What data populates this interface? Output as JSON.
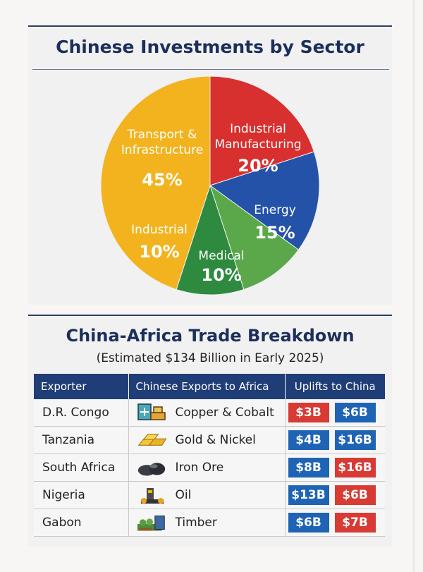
{
  "colors": {
    "title": "#1c2f5c",
    "header_bg": "#1f3d76",
    "red": "#d83a34",
    "blue": "#1f63b5",
    "pie_yellow": "#f2b31f",
    "pie_red": "#d8302e",
    "pie_blue": "#2452a8",
    "pie_light_green": "#5aa84a",
    "pie_green": "#2e8a3f"
  },
  "chart_data": {
    "type": "pie",
    "title": "Chinese Investments by Sector",
    "slices": [
      {
        "label_lines": [
          "Transport &",
          "Infrastructure"
        ],
        "value": 45,
        "value_label": "45%",
        "color": "#f2b31f"
      },
      {
        "label_lines": [
          "Industrial",
          "Manufacturing"
        ],
        "value": 20,
        "value_label": "20%",
        "color": "#d8302e"
      },
      {
        "label_lines": [
          "Energy"
        ],
        "value": 15,
        "value_label": "15%",
        "color": "#2452a8"
      },
      {
        "label_lines": [
          "Medical"
        ],
        "value": 10,
        "value_label": "10%",
        "color": "#5aa84a"
      },
      {
        "label_lines": [
          "Industrial"
        ],
        "value": 10,
        "value_label": "10%",
        "color": "#2e8a3f"
      }
    ]
  },
  "trade": {
    "title": "China-Africa Trade Breakdown",
    "subtitle": "(Estimated $134 Billion in Early 2025)",
    "headers": [
      "Exporter",
      "Chinese Exports to Africa",
      "Uplifts to China"
    ],
    "rows": [
      {
        "country": "D.R. Congo",
        "commodity": "Copper & Cobalt",
        "icon": "copper-cobalt-icon",
        "v1": "$3B",
        "v1_color": "#d83a34",
        "v2": "$6B",
        "v2_color": "#1f63b5"
      },
      {
        "country": "Tanzania",
        "commodity": "Gold & Nickel",
        "icon": "gold-bars-icon",
        "v1": "$4B",
        "v1_color": "#1f63b5",
        "v2": "$16B",
        "v2_color": "#1f63b5"
      },
      {
        "country": "South Africa",
        "commodity": "Iron Ore",
        "icon": "iron-ore-icon",
        "v1": "$8B",
        "v1_color": "#1f63b5",
        "v2": "$16B",
        "v2_color": "#d83a34"
      },
      {
        "country": "Nigeria",
        "commodity": "Oil",
        "icon": "oil-pump-icon",
        "v1": "$13B",
        "v1_color": "#1f63b5",
        "v2": "$6B",
        "v2_color": "#d83a34"
      },
      {
        "country": "Gabon",
        "commodity": "Timber",
        "icon": "timber-icon",
        "v1": "$6B",
        "v1_color": "#1f63b5",
        "v2": "$7B",
        "v2_color": "#d83a34"
      }
    ]
  }
}
